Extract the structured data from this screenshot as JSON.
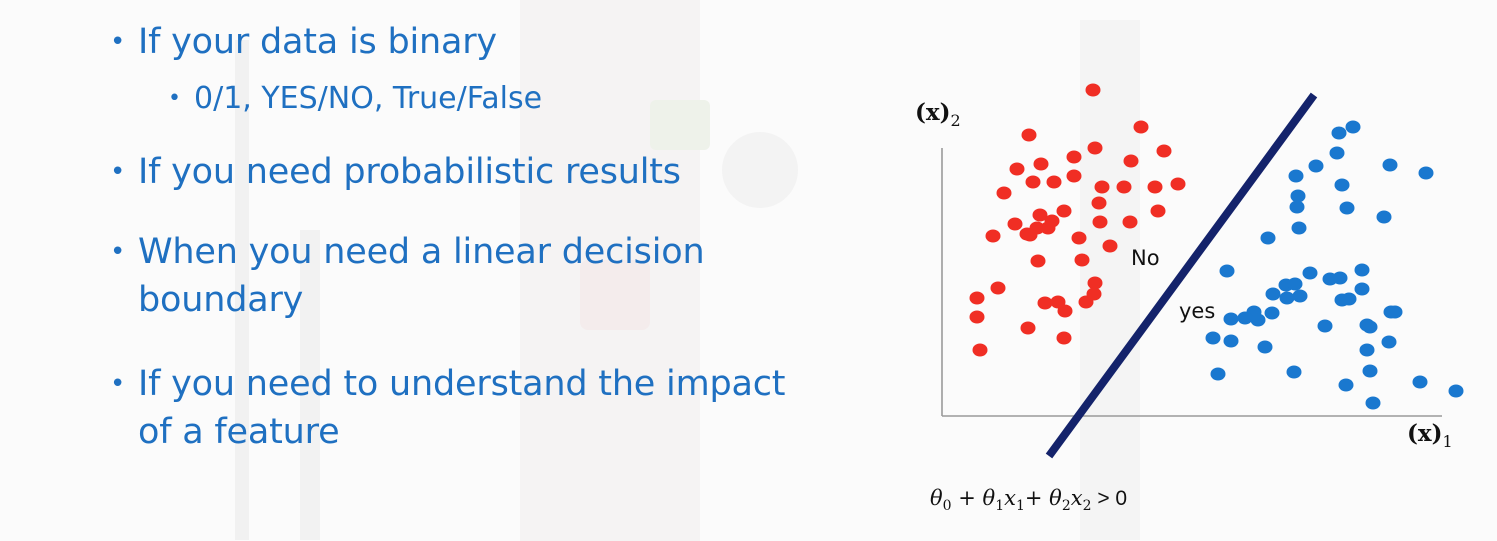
{
  "bullets": [
    {
      "text": "If your data is binary",
      "sub": [
        "0/1, YES/NO,  True/False"
      ]
    },
    {
      "text": "If you need probabilistic results"
    },
    {
      "text": "When you need a linear decision",
      "text2": "boundary"
    },
    {
      "text": "If you need to understand the impact",
      "text2": "of a feature"
    }
  ],
  "bullet_glyph": "•",
  "diagram": {
    "y_axis_label": "(x)",
    "y_axis_subscript": "2",
    "x_axis_label": "(x)",
    "x_axis_subscript": "1",
    "region_label_no": "No",
    "region_label_yes": "yes",
    "equation": {
      "t0": "θ",
      "s0": "0",
      "plus1": " + ",
      "t1": "θ",
      "s1": "1",
      "x1": "x",
      "sx1": "1",
      "plus2": "+ ",
      "t2": "θ",
      "s2": "2",
      "x2": "x",
      "sx2": "2",
      "gt": " > 0"
    },
    "colors": {
      "no_class": "#f02e24",
      "yes_class": "#1a78cf",
      "boundary": "#14236b",
      "axis": "#9a9a9a",
      "text": "#1f70c1"
    },
    "no_class_count": 46,
    "yes_class_count": 49
  }
}
